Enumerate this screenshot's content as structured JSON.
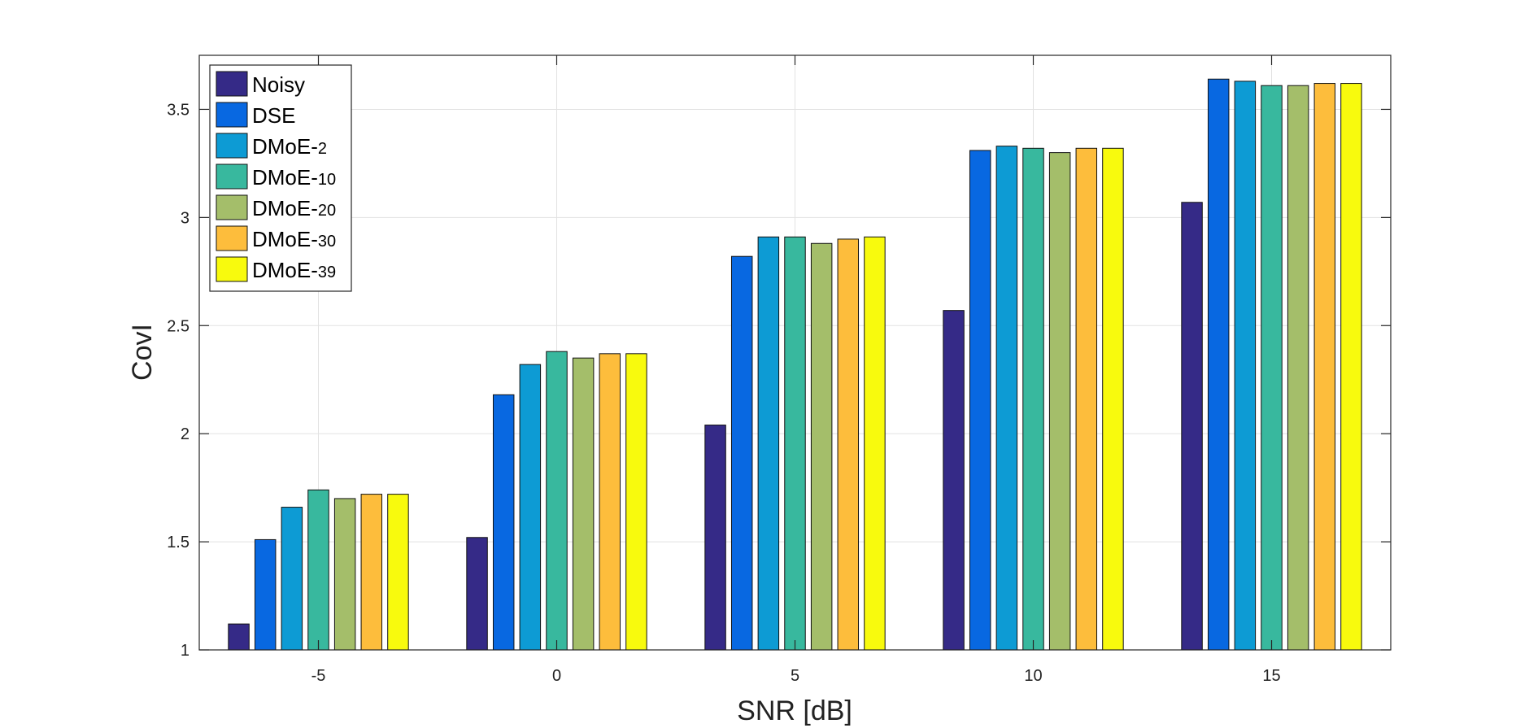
{
  "chart_data": {
    "type": "bar",
    "title": "",
    "xlabel": "SNR [dB]",
    "ylabel": "CovI",
    "categories": [
      "-5",
      "0",
      "5",
      "10",
      "15"
    ],
    "ylim": [
      1,
      3.75
    ],
    "yticks": [
      1,
      1.5,
      2,
      2.5,
      3,
      3.5
    ],
    "ytick_labels": [
      "1",
      "1.5",
      "2",
      "2.5",
      "3",
      "3.5"
    ],
    "grid": true,
    "legend_position": "top-left",
    "series": [
      {
        "name": "Noisy",
        "label_main": "Noisy",
        "label_suffix": "",
        "color": "#352a87",
        "values": [
          1.12,
          1.52,
          2.04,
          2.57,
          3.07
        ]
      },
      {
        "name": "DSE",
        "label_main": "DSE",
        "label_suffix": "",
        "color": "#0868e1",
        "values": [
          1.51,
          2.18,
          2.82,
          3.31,
          3.64
        ]
      },
      {
        "name": "DMoE-2",
        "label_main": "DMoE-",
        "label_suffix": "2",
        "color": "#0d9bd4",
        "values": [
          1.66,
          2.32,
          2.91,
          3.33,
          3.63
        ]
      },
      {
        "name": "DMoE-10",
        "label_main": "DMoE-",
        "label_suffix": "10",
        "color": "#38b89e",
        "values": [
          1.74,
          2.38,
          2.91,
          3.32,
          3.61
        ]
      },
      {
        "name": "DMoE-20",
        "label_main": "DMoE-",
        "label_suffix": "20",
        "color": "#a4be6a",
        "values": [
          1.7,
          2.35,
          2.88,
          3.3,
          3.61
        ]
      },
      {
        "name": "DMoE-30",
        "label_main": "DMoE-",
        "label_suffix": "30",
        "color": "#fdbd3c",
        "values": [
          1.72,
          2.37,
          2.9,
          3.32,
          3.62
        ]
      },
      {
        "name": "DMoE-39",
        "label_main": "DMoE-",
        "label_suffix": "39",
        "color": "#f8fa0d",
        "values": [
          1.72,
          2.37,
          2.91,
          3.32,
          3.62
        ]
      }
    ]
  }
}
